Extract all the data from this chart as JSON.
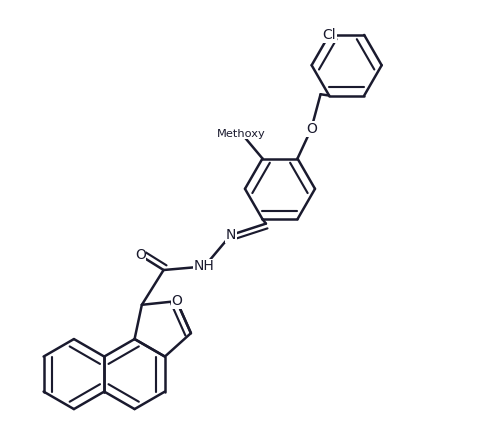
{
  "background_color": "#ffffff",
  "line_color": "#1a1a2e",
  "line_width": 1.8,
  "font_size": 10.0,
  "figsize": [
    4.78,
    4.43
  ],
  "dpi": 100,
  "xlim": [
    0.0,
    9.5
  ],
  "ylim": [
    0.0,
    8.8
  ]
}
